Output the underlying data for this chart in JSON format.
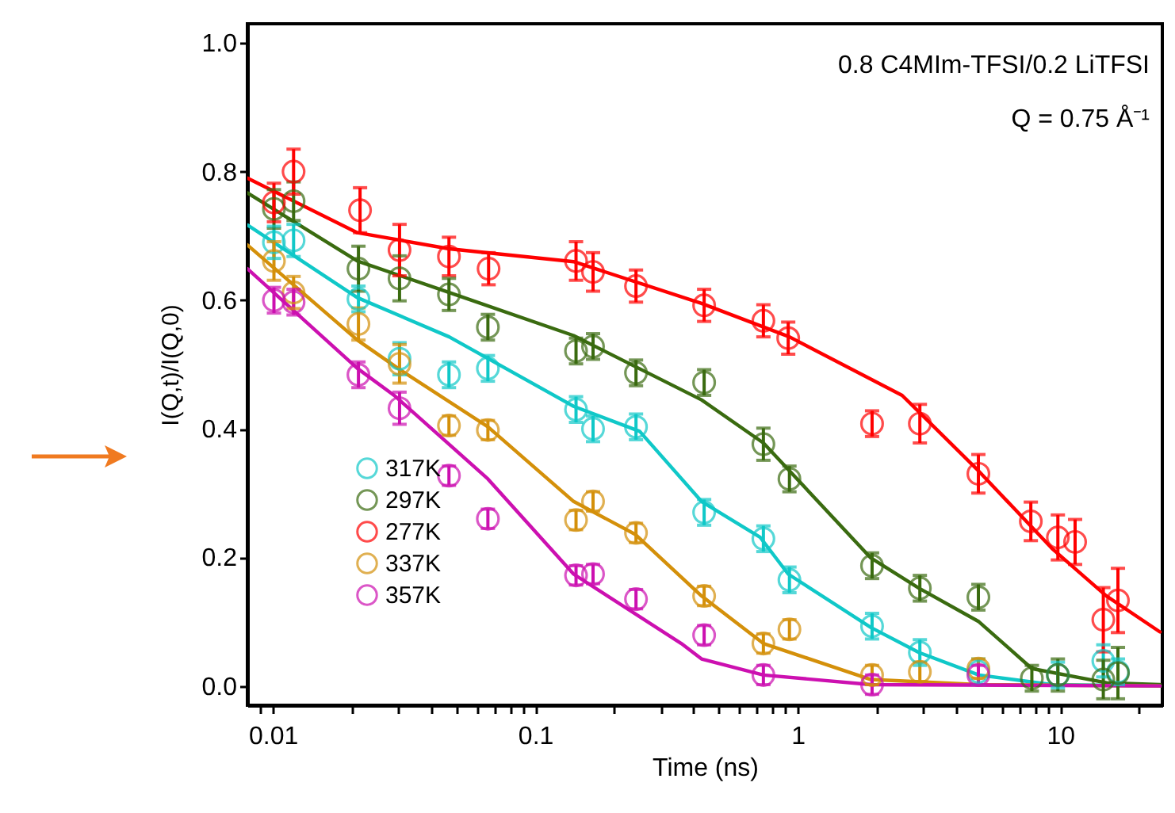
{
  "chart_data": {
    "type": "scatter",
    "xlabel": "Time (ns)",
    "ylabel": "I(Q,t)/I(Q,0)",
    "annotations": [
      "0.8 C4MIm-TFSI/0.2 LiTFSI",
      "Q = 0.75 Å⁻¹"
    ],
    "log": "x",
    "grid": false,
    "legend": "bottom left",
    "marker": "circle",
    "xlim": [
      0.008,
      24.5
    ],
    "ylim": [
      -0.03,
      1.03
    ],
    "xticks": [
      {
        "value": 0.009,
        "label": null
      },
      {
        "value": 0.01,
        "label": "0.01"
      },
      {
        "value": 0.02,
        "label": null
      },
      {
        "value": 0.03,
        "label": null
      },
      {
        "value": 0.04,
        "label": null
      },
      {
        "value": 0.05,
        "label": null
      },
      {
        "value": 0.06,
        "label": null
      },
      {
        "value": 0.07,
        "label": null
      },
      {
        "value": 0.08,
        "label": null
      },
      {
        "value": 0.09,
        "label": null
      },
      {
        "value": 0.1,
        "label": "0.1"
      },
      {
        "value": 0.2,
        "label": null
      },
      {
        "value": 0.3,
        "label": null
      },
      {
        "value": 0.4,
        "label": null
      },
      {
        "value": 0.5,
        "label": null
      },
      {
        "value": 0.6,
        "label": null
      },
      {
        "value": 0.7,
        "label": null
      },
      {
        "value": 0.8,
        "label": null
      },
      {
        "value": 0.9,
        "label": null
      },
      1,
      {
        "value": 2,
        "label": null
      },
      {
        "value": 3,
        "label": null
      },
      {
        "value": 4,
        "label": null
      },
      {
        "value": 5,
        "label": null
      },
      {
        "value": 6,
        "label": null
      },
      {
        "value": 7,
        "label": null
      },
      {
        "value": 8,
        "label": null
      },
      {
        "value": 9,
        "label": null
      },
      10,
      {
        "value": 20,
        "label": null
      }
    ],
    "yticks": [
      {
        "value": 0,
        "label": "0.0"
      },
      0.2,
      0.4,
      0.6,
      0.8,
      {
        "value": 1,
        "label": "1.0"
      }
    ],
    "series": [
      {
        "name": "317K",
        "color": "#10c8c8",
        "x": [
          0.0101,
          0.012,
          0.0212,
          0.0304,
          0.0469,
          0.066,
          0.143,
          0.166,
          0.242,
          0.44,
          0.74,
          0.93,
          1.92,
          2.92,
          4.88,
          9.8,
          14.6,
          16.6
        ],
        "values": [
          0.69,
          0.693,
          0.602,
          0.509,
          0.484,
          0.494,
          0.43,
          0.4,
          0.403,
          0.27,
          0.229,
          0.165,
          0.093,
          0.052,
          0.022,
          0.017,
          0.039,
          0.022
        ],
        "errors": [
          0.025,
          0.025,
          0.02,
          0.025,
          0.02,
          0.02,
          0.02,
          0.02,
          0.02,
          0.02,
          0.02,
          0.02,
          0.02,
          0.02,
          0.02,
          0.02,
          0.025,
          0.02
        ]
      },
      {
        "name": "297K",
        "color": "#3a6b10",
        "x": [
          0.0101,
          0.012,
          0.0212,
          0.0304,
          0.0469,
          0.066,
          0.143,
          0.166,
          0.242,
          0.44,
          0.74,
          0.93,
          1.92,
          2.92,
          4.88,
          7.8,
          9.8,
          14.6,
          16.6
        ],
        "values": [
          0.742,
          0.754,
          0.649,
          0.634,
          0.609,
          0.558,
          0.521,
          0.528,
          0.487,
          0.472,
          0.376,
          0.322,
          0.187,
          0.152,
          0.138,
          0.012,
          0.017,
          0.01,
          0.02
        ],
        "errors": [
          0.03,
          0.03,
          0.035,
          0.035,
          0.025,
          0.02,
          0.02,
          0.02,
          0.02,
          0.02,
          0.025,
          0.02,
          0.02,
          0.02,
          0.02,
          0.02,
          0.025,
          0.03,
          0.04
        ]
      },
      {
        "name": "277K",
        "color": "#ff0000",
        "x": [
          0.0101,
          0.012,
          0.0215,
          0.0304,
          0.0469,
          0.0664,
          0.143,
          0.166,
          0.242,
          0.44,
          0.74,
          0.92,
          1.92,
          2.92,
          4.88,
          7.73,
          9.8,
          11.4,
          14.6,
          16.6
        ],
        "values": [
          0.752,
          0.8,
          0.74,
          0.678,
          0.668,
          0.649,
          0.661,
          0.644,
          0.622,
          0.592,
          0.568,
          0.541,
          0.408,
          0.408,
          0.33,
          0.256,
          0.231,
          0.224,
          0.103,
          0.133
        ],
        "errors": [
          0.03,
          0.035,
          0.035,
          0.04,
          0.03,
          0.025,
          0.03,
          0.03,
          0.025,
          0.025,
          0.025,
          0.025,
          0.02,
          0.03,
          0.03,
          0.03,
          0.035,
          0.035,
          0.05,
          0.05
        ]
      },
      {
        "name": "337K",
        "color": "#d4900a",
        "x": [
          0.0101,
          0.012,
          0.0212,
          0.0304,
          0.0469,
          0.066,
          0.143,
          0.166,
          0.242,
          0.44,
          0.74,
          0.93,
          1.92,
          2.92,
          4.88
        ],
        "values": [
          0.661,
          0.612,
          0.563,
          0.501,
          0.405,
          0.398,
          0.258,
          0.287,
          0.238,
          0.14,
          0.066,
          0.088,
          0.017,
          0.022,
          0.027
        ],
        "errors": [
          0.03,
          0.025,
          0.025,
          0.03,
          0.015,
          0.015,
          0.015,
          0.015,
          0.015,
          0.015,
          0.015,
          0.015,
          0.015,
          0.015,
          0.015
        ]
      },
      {
        "name": "357K",
        "color": "#cc10b0",
        "x": [
          0.0101,
          0.012,
          0.0212,
          0.0304,
          0.0469,
          0.066,
          0.143,
          0.166,
          0.242,
          0.44,
          0.74,
          1.92,
          4.88
        ],
        "values": [
          0.6,
          0.597,
          0.484,
          0.432,
          0.327,
          0.26,
          0.172,
          0.174,
          0.135,
          0.079,
          0.017,
          0.002,
          0.017
        ],
        "errors": [
          0.02,
          0.02,
          0.02,
          0.025,
          0.015,
          0.015,
          0.015,
          0.015,
          0.015,
          0.015,
          0.015,
          0.015,
          0.015
        ]
      },
      {
        "color": "#10c8c8",
        "type": "line",
        "marker": "none",
        "x": [
          0.008,
          0.021,
          0.047,
          0.14,
          0.25,
          0.43,
          0.72,
          0.92,
          1.9,
          2.9,
          4.9,
          9.3,
          24
        ],
        "values": [
          0.717,
          0.604,
          0.543,
          0.435,
          0.396,
          0.287,
          0.231,
          0.174,
          0.091,
          0.052,
          0.017,
          0.002,
          0
        ]
      },
      {
        "color": "#3a6b10",
        "type": "line",
        "marker": "none",
        "x": [
          0.008,
          0.021,
          0.047,
          0.14,
          0.43,
          0.74,
          1.9,
          2.9,
          4.9,
          7.8,
          15,
          24
        ],
        "values": [
          0.767,
          0.661,
          0.612,
          0.545,
          0.445,
          0.378,
          0.199,
          0.152,
          0.1,
          0.027,
          0.005,
          0.002
        ]
      },
      {
        "color": "#ff0000",
        "type": "line",
        "marker": "none",
        "x": [
          0.008,
          0.021,
          0.047,
          0.14,
          0.43,
          0.93,
          2.5,
          4.9,
          9.3,
          15,
          24
        ],
        "values": [
          0.79,
          0.705,
          0.68,
          0.66,
          0.595,
          0.543,
          0.452,
          0.334,
          0.214,
          0.14,
          0.084
        ]
      },
      {
        "color": "#d4900a",
        "type": "line",
        "marker": "none",
        "x": [
          0.008,
          0.021,
          0.03,
          0.066,
          0.14,
          0.24,
          0.43,
          0.74,
          1.9,
          4.9,
          24
        ],
        "values": [
          0.686,
          0.538,
          0.494,
          0.403,
          0.287,
          0.236,
          0.14,
          0.066,
          0.01,
          0.002,
          0
        ]
      },
      {
        "color": "#cc10b0",
        "type": "line",
        "marker": "none",
        "x": [
          0.008,
          0.021,
          0.029,
          0.066,
          0.14,
          0.36,
          0.43,
          0.74,
          1.9,
          24
        ],
        "values": [
          0.649,
          0.494,
          0.452,
          0.322,
          0.174,
          0.066,
          0.042,
          0.017,
          0.002,
          0
        ]
      }
    ]
  }
}
